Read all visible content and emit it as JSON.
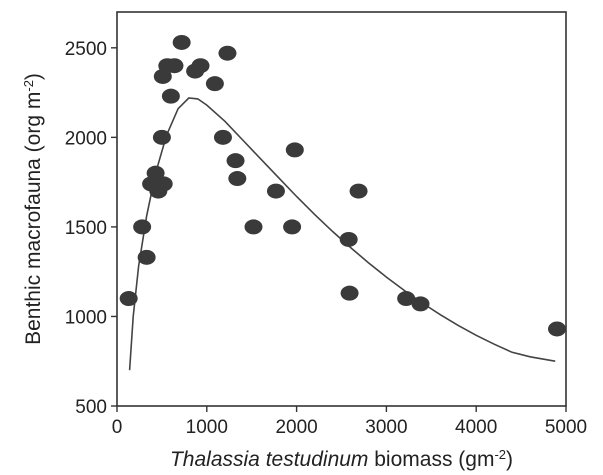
{
  "chart_data": {
    "type": "scatter",
    "xlabel_italic": "Thalassia testudinum",
    "xlabel_rest": " biomass (gm",
    "xlabel_sup": "-2",
    "xlabel_close": ")",
    "ylabel_main": "Benthic macrofauna (org m",
    "ylabel_sup": "-2",
    "ylabel_close": ")",
    "xlim": [
      0,
      5000
    ],
    "ylim": [
      500,
      2700
    ],
    "x_ticks": [
      0,
      1000,
      2000,
      3000,
      4000,
      5000
    ],
    "y_ticks": [
      500,
      1000,
      1500,
      2000,
      2500
    ],
    "x_tick_labels": [
      "0",
      "1000",
      "2000",
      "3000",
      "4000",
      "5000"
    ],
    "y_tick_labels": [
      "500",
      "1000",
      "1500",
      "2000",
      "2500"
    ],
    "grid": false,
    "point_color": "#3a3a3a",
    "line_color": "#444444",
    "points": [
      {
        "x": 130,
        "y": 1100
      },
      {
        "x": 280,
        "y": 1500
      },
      {
        "x": 330,
        "y": 1330
      },
      {
        "x": 380,
        "y": 1740
      },
      {
        "x": 430,
        "y": 1800
      },
      {
        "x": 460,
        "y": 1700
      },
      {
        "x": 520,
        "y": 1740
      },
      {
        "x": 500,
        "y": 2000
      },
      {
        "x": 510,
        "y": 2340
      },
      {
        "x": 560,
        "y": 2400
      },
      {
        "x": 600,
        "y": 2230
      },
      {
        "x": 640,
        "y": 2400
      },
      {
        "x": 720,
        "y": 2530
      },
      {
        "x": 870,
        "y": 2370
      },
      {
        "x": 930,
        "y": 2400
      },
      {
        "x": 1090,
        "y": 2300
      },
      {
        "x": 1180,
        "y": 2000
      },
      {
        "x": 1230,
        "y": 2470
      },
      {
        "x": 1320,
        "y": 1870
      },
      {
        "x": 1340,
        "y": 1770
      },
      {
        "x": 1520,
        "y": 1500
      },
      {
        "x": 1770,
        "y": 1700
      },
      {
        "x": 1950,
        "y": 1500
      },
      {
        "x": 1980,
        "y": 1930
      },
      {
        "x": 2580,
        "y": 1430
      },
      {
        "x": 2590,
        "y": 1130
      },
      {
        "x": 2690,
        "y": 1700
      },
      {
        "x": 3220,
        "y": 1100
      },
      {
        "x": 3380,
        "y": 1070
      },
      {
        "x": 4900,
        "y": 930
      }
    ],
    "curve": [
      {
        "x": 140,
        "y": 700
      },
      {
        "x": 180,
        "y": 1000
      },
      {
        "x": 240,
        "y": 1280
      },
      {
        "x": 330,
        "y": 1560
      },
      {
        "x": 430,
        "y": 1800
      },
      {
        "x": 550,
        "y": 2010
      },
      {
        "x": 680,
        "y": 2160
      },
      {
        "x": 800,
        "y": 2220
      },
      {
        "x": 900,
        "y": 2215
      },
      {
        "x": 1000,
        "y": 2180
      },
      {
        "x": 1200,
        "y": 2090
      },
      {
        "x": 1400,
        "y": 1985
      },
      {
        "x": 1600,
        "y": 1880
      },
      {
        "x": 1800,
        "y": 1775
      },
      {
        "x": 2000,
        "y": 1670
      },
      {
        "x": 2200,
        "y": 1570
      },
      {
        "x": 2400,
        "y": 1475
      },
      {
        "x": 2600,
        "y": 1385
      },
      {
        "x": 2800,
        "y": 1300
      },
      {
        "x": 3000,
        "y": 1220
      },
      {
        "x": 3200,
        "y": 1145
      },
      {
        "x": 3400,
        "y": 1075
      },
      {
        "x": 3600,
        "y": 1010
      },
      {
        "x": 3800,
        "y": 950
      },
      {
        "x": 4000,
        "y": 895
      },
      {
        "x": 4200,
        "y": 845
      },
      {
        "x": 4400,
        "y": 800
      },
      {
        "x": 4600,
        "y": 775
      },
      {
        "x": 4880,
        "y": 750
      }
    ]
  }
}
